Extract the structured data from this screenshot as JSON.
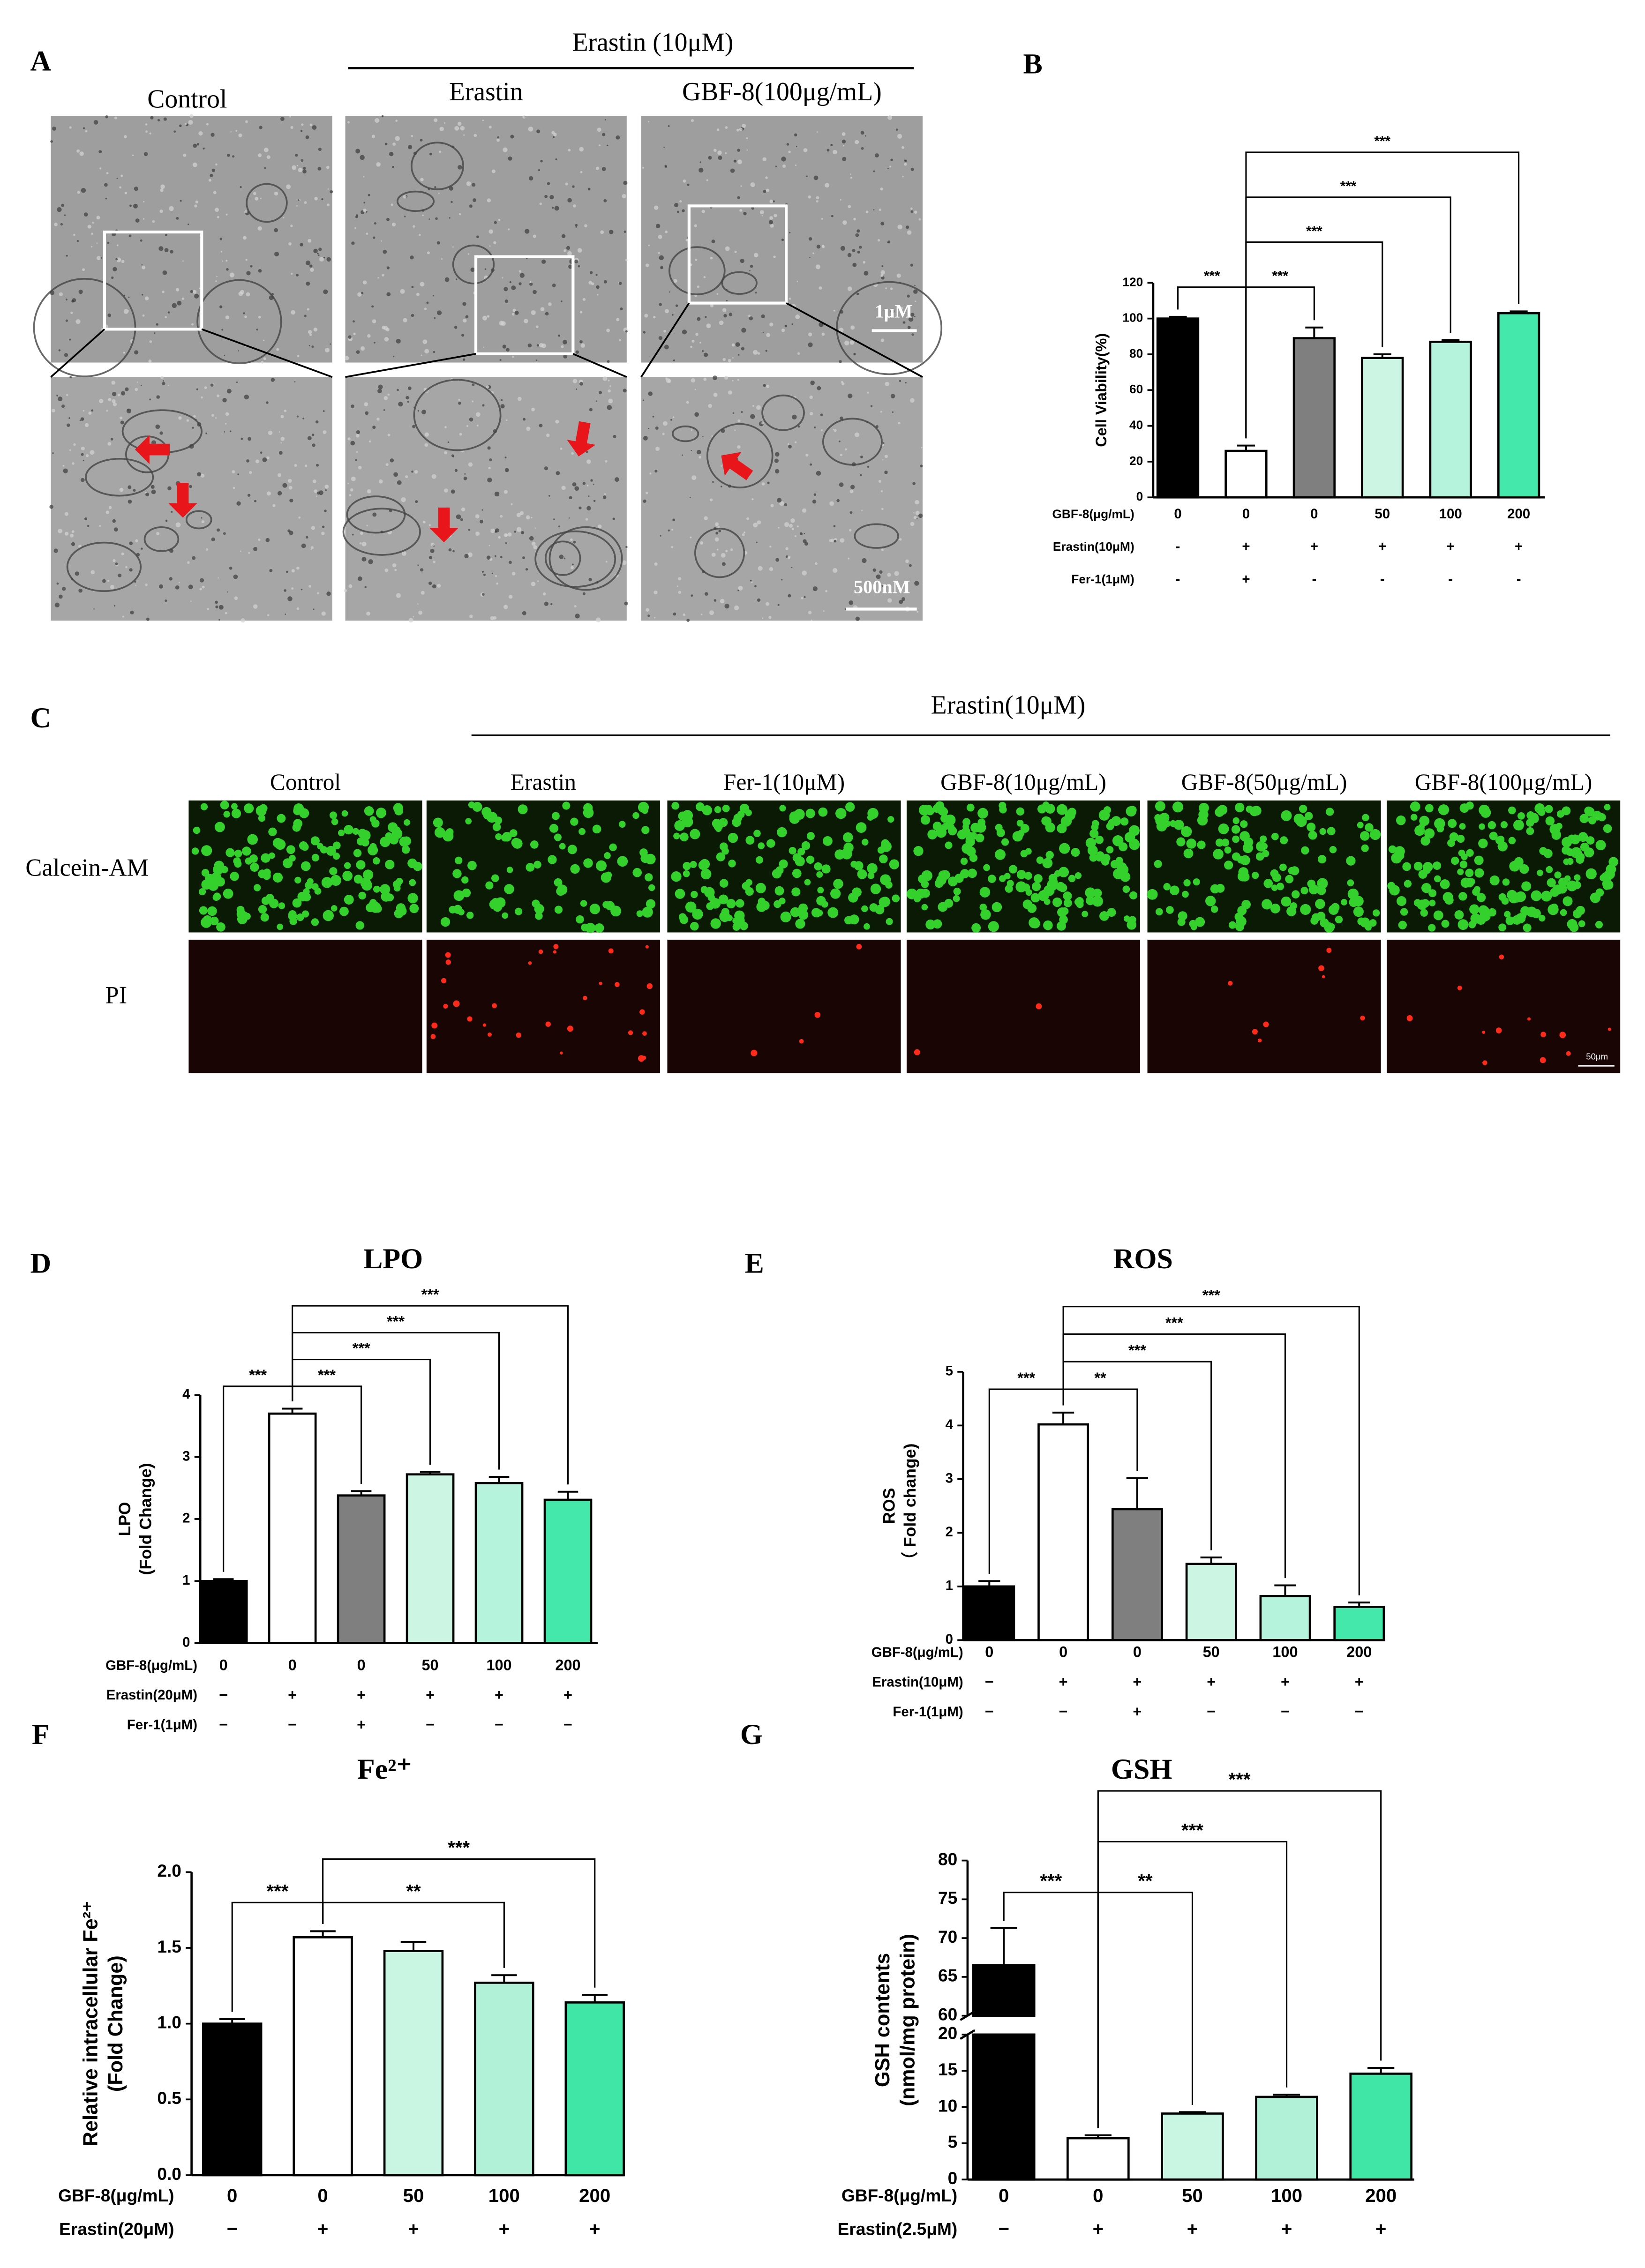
{
  "panel_a": {
    "label": "A",
    "group_label": "Erastin (10μM)",
    "columns": [
      "Control",
      "Erastin",
      "GBF-8(100μg/mL)"
    ],
    "scale_bars": [
      "1μM",
      "500nM"
    ]
  },
  "panel_c": {
    "label": "C",
    "group_label": "Erastin(10μM)",
    "columns": [
      "Control",
      "Erastin",
      "Fer-1(10μM)",
      "GBF-8(10μg/mL)",
      "GBF-8(50μg/mL)",
      "GBF-8(100μg/mL)"
    ],
    "rows": [
      "Calcein-AM",
      "PI"
    ],
    "scale_bar": "50μm"
  },
  "chart_data": [
    {
      "type": "bar",
      "panel": "B",
      "ylabel": [
        "Cell Viability(%)"
      ],
      "values": [
        100,
        26,
        89,
        78,
        87,
        103
      ],
      "errors": [
        1,
        3,
        6,
        2,
        1,
        1
      ],
      "colors": [
        "#000000",
        "#ffffff",
        "#7f7f7f",
        "#ccf5e4",
        "#b6f3dc",
        "#44e8aa"
      ],
      "ylim": [
        0,
        120
      ],
      "yticks": [
        0,
        20,
        40,
        60,
        80,
        100,
        120
      ],
      "treatments": [
        {
          "name": "GBF-8(μg/mL)",
          "values": [
            "0",
            "0",
            "0",
            "50",
            "100",
            "200"
          ]
        },
        {
          "name": "Erastin(10μM)",
          "values": [
            "-",
            "+",
            "+",
            "+",
            "+",
            "+"
          ]
        },
        {
          "name": "Fer-1(1μM)",
          "values": [
            "-",
            "+",
            "-",
            "-",
            "-",
            "-"
          ]
        }
      ],
      "brackets": [
        {
          "from": 0,
          "to": 1,
          "label": "***"
        },
        {
          "from": 1,
          "to": 2,
          "label": "***"
        },
        {
          "from": 1,
          "to": 3,
          "label": "***"
        },
        {
          "from": 1,
          "to": 4,
          "label": "***"
        },
        {
          "from": 1,
          "to": 5,
          "label": "***"
        }
      ]
    },
    {
      "type": "bar",
      "panel": "D",
      "title": "LPO",
      "ylabel": [
        "LPO",
        "(Fold Change)"
      ],
      "values": [
        1.0,
        3.7,
        2.38,
        2.72,
        2.58,
        2.31
      ],
      "errors": [
        0.03,
        0.08,
        0.07,
        0.04,
        0.1,
        0.13
      ],
      "colors": [
        "#000000",
        "#ffffff",
        "#7f7f7f",
        "#ccf5e4",
        "#b6f3dc",
        "#44e8aa"
      ],
      "ylim": [
        0,
        4
      ],
      "yticks": [
        0,
        1,
        2,
        3,
        4
      ],
      "treatments": [
        {
          "name": "GBF-8(μg/mL)",
          "values": [
            "0",
            "0",
            "0",
            "50",
            "100",
            "200"
          ]
        },
        {
          "name": "Erastin(20μM)",
          "values": [
            "−",
            "+",
            "+",
            "+",
            "+",
            "+"
          ]
        },
        {
          "name": "Fer-1(1μM)",
          "values": [
            "−",
            "−",
            "+",
            "−",
            "−",
            "−"
          ]
        }
      ],
      "brackets": [
        {
          "from": 0,
          "to": 1,
          "label": "***"
        },
        {
          "from": 1,
          "to": 2,
          "label": "***"
        },
        {
          "from": 1,
          "to": 3,
          "label": "***"
        },
        {
          "from": 1,
          "to": 4,
          "label": "***"
        },
        {
          "from": 1,
          "to": 5,
          "label": "***"
        }
      ]
    },
    {
      "type": "bar",
      "panel": "E",
      "title": "ROS",
      "ylabel": [
        "ROS",
        "（ Fold  change)"
      ],
      "values": [
        1.0,
        4.02,
        2.44,
        1.42,
        0.82,
        0.62
      ],
      "errors": [
        0.1,
        0.22,
        0.58,
        0.12,
        0.2,
        0.08
      ],
      "colors": [
        "#000000",
        "#ffffff",
        "#7f7f7f",
        "#ccf5e4",
        "#b6f3dc",
        "#44e8aa"
      ],
      "ylim": [
        0,
        5
      ],
      "yticks": [
        0,
        1,
        2,
        3,
        4,
        5
      ],
      "treatments": [
        {
          "name": "GBF-8(μg/mL)",
          "values": [
            "0",
            "0",
            "0",
            "50",
            "100",
            "200"
          ]
        },
        {
          "name": "Erastin(10μM)",
          "values": [
            "−",
            "+",
            "+",
            "+",
            "+",
            "+"
          ]
        },
        {
          "name": "Fer-1(1μM)",
          "values": [
            "−",
            "−",
            "+",
            "−",
            "−",
            "−"
          ]
        }
      ],
      "brackets": [
        {
          "from": 0,
          "to": 1,
          "label": "***"
        },
        {
          "from": 1,
          "to": 2,
          "label": "**"
        },
        {
          "from": 1,
          "to": 3,
          "label": "***"
        },
        {
          "from": 1,
          "to": 4,
          "label": "***"
        },
        {
          "from": 1,
          "to": 5,
          "label": "***"
        }
      ]
    },
    {
      "type": "bar",
      "panel": "F",
      "title": "Fe²⁺",
      "ylabel": [
        "Relative intracellular Fe²⁺",
        "(Fold Change)"
      ],
      "values": [
        1.0,
        1.57,
        1.48,
        1.27,
        1.14
      ],
      "errors": [
        0.03,
        0.04,
        0.06,
        0.05,
        0.05
      ],
      "colors": [
        "#000000",
        "#ffffff",
        "#c9f6e3",
        "#b0f1d8",
        "#3fe6a5"
      ],
      "ylim": [
        0,
        2
      ],
      "yticks": [
        {
          "value": 0,
          "label": "0.0"
        },
        0.5,
        {
          "value": 1,
          "label": "1.0"
        },
        1.5,
        {
          "value": 2,
          "label": "2.0"
        }
      ],
      "treatments": [
        {
          "name": "GBF-8(μg/mL)",
          "values": [
            "0",
            "0",
            "50",
            "100",
            "200"
          ]
        },
        {
          "name": "Erastin(20μM)",
          "values": [
            "−",
            "+",
            "+",
            "+",
            "+"
          ]
        }
      ],
      "brackets": [
        {
          "from": 0,
          "to": 1,
          "label": "***"
        },
        {
          "from": 1,
          "to": 3,
          "label": "**"
        },
        {
          "from": 1,
          "to": 4,
          "label": "***"
        }
      ]
    },
    {
      "type": "bar",
      "panel": "G",
      "title": "GSH",
      "ylabel": [
        "GSH contents",
        "(nmol/mg protein)"
      ],
      "values": [
        66.5,
        5.7,
        9.1,
        11.4,
        14.6
      ],
      "errors": [
        4.8,
        0.4,
        0.2,
        0.3,
        0.8
      ],
      "colors": [
        "#000000",
        "#ffffff",
        "#c9f6e3",
        "#b0f1d8",
        "#3fe6a5"
      ],
      "ylim": [
        0,
        80
      ],
      "axis_break": [
        20,
        60
      ],
      "yticks": [
        0,
        5,
        10,
        15,
        20,
        60,
        65,
        70,
        75,
        80
      ],
      "treatments": [
        {
          "name": "GBF-8(μg/mL)",
          "values": [
            "0",
            "0",
            "50",
            "100",
            "200"
          ]
        },
        {
          "name": "Erastin(2.5μM)",
          "values": [
            "−",
            "+",
            "+",
            "+",
            "+"
          ]
        }
      ],
      "brackets": [
        {
          "from": 0,
          "to": 1,
          "label": "***"
        },
        {
          "from": 1,
          "to": 2,
          "label": "**"
        },
        {
          "from": 1,
          "to": 3,
          "label": "***"
        },
        {
          "from": 1,
          "to": 4,
          "label": "***"
        }
      ]
    }
  ]
}
